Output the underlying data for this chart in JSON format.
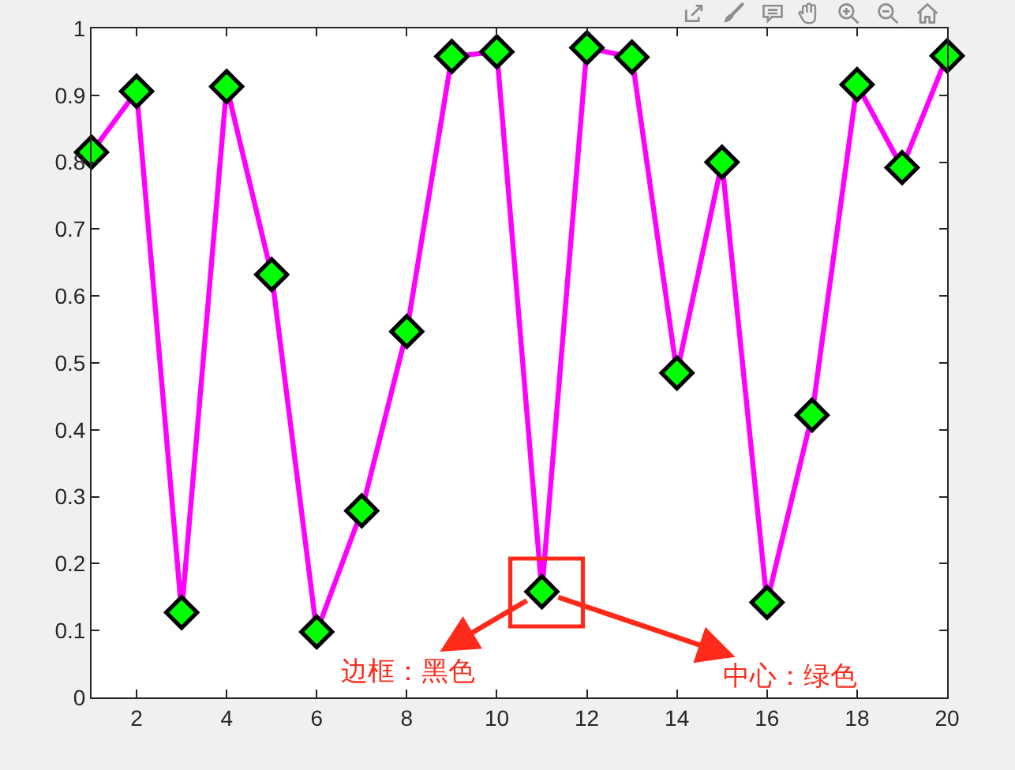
{
  "chart_data": {
    "type": "line",
    "x": [
      1,
      2,
      3,
      4,
      5,
      6,
      7,
      8,
      9,
      10,
      11,
      12,
      13,
      14,
      15,
      16,
      17,
      18,
      19,
      20
    ],
    "series": [
      {
        "color": "#ff00ff",
        "colors": [
          "#00ff00",
          "#00ff00",
          "#00ff00",
          "#00ff00",
          "#00ff00",
          "#00ff00",
          "#00ff00",
          "#00ff00",
          "#00ff00",
          "#00ff00",
          "#00ff00",
          "#00ff00",
          "#00ff00",
          "#00ff00",
          "#00ff00",
          "#00ff00",
          "#00ff00",
          "#00ff00",
          "#00ff00",
          "#00ff00"
        ],
        "values": [
          0.815,
          0.906,
          0.127,
          0.913,
          0.632,
          0.098,
          0.279,
          0.547,
          0.958,
          0.965,
          0.158,
          0.971,
          0.957,
          0.485,
          0.8,
          0.142,
          0.422,
          0.916,
          0.792,
          0.959
        ]
      }
    ],
    "xlim": [
      1,
      20
    ],
    "xticks": [
      2,
      4,
      6,
      8,
      10,
      12,
      14,
      16,
      18,
      20
    ],
    "ylim": [
      0,
      1
    ],
    "yticks": [
      0,
      0.1,
      0.2,
      0.3,
      0.4,
      0.5,
      0.6,
      0.7,
      0.8,
      0.9,
      1
    ],
    "marker": "diamond",
    "line_style": "solid",
    "grid": false,
    "annotations": [
      {
        "text": "边框：黑色",
        "x": 11,
        "y": 0.158
      },
      {
        "text": "中心：绿色",
        "x": 11,
        "y": 0.158
      }
    ]
  }
}
